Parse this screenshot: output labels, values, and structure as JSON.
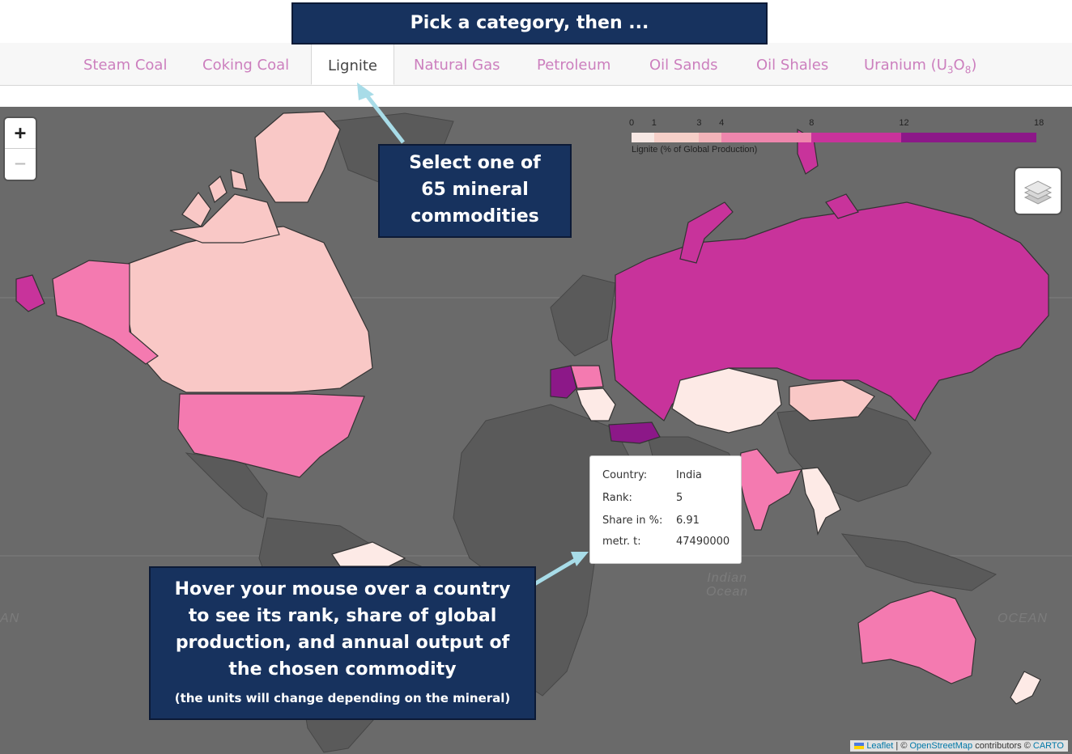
{
  "banner": {
    "text": "Pick a category, then ..."
  },
  "tabs": [
    {
      "label": "Steam Coal",
      "active": false
    },
    {
      "label": "Coking Coal",
      "active": false
    },
    {
      "label": "Lignite",
      "active": true
    },
    {
      "label": "Natural Gas",
      "active": false
    },
    {
      "label": "Petroleum",
      "active": false
    },
    {
      "label": "Oil Sands",
      "active": false
    },
    {
      "label": "Oil Shales",
      "active": false
    },
    {
      "label_main": "Uranium (U",
      "label_sub1": "3",
      "label_mid": "O",
      "label_sub2": "8",
      "label_end": ")",
      "active": false
    }
  ],
  "callouts": {
    "select_lines": [
      "Select one of",
      "65 mineral",
      "commodities"
    ],
    "hover_lines": [
      "Hover your mouse over a country",
      "to see its rank, share of global",
      "production, and annual output of",
      "the chosen commodity"
    ],
    "hover_note": "(the units will change depending on the mineral)"
  },
  "map": {
    "zoom_in_label": "+",
    "zoom_out_label": "−",
    "layers_icon": "layers-icon",
    "ocean_labels": {
      "indian": [
        "Indian",
        "Ocean"
      ],
      "right": "OCEAN",
      "left": "AN"
    },
    "legend": {
      "title": "Lignite (% of Global Production)",
      "ticks": [
        "0",
        "1",
        "3",
        "4",
        "8",
        "12",
        "18"
      ],
      "tick_values": [
        0,
        1,
        3,
        4,
        8,
        12,
        18
      ],
      "range": [
        0,
        18
      ],
      "bins": [
        {
          "from": 0,
          "to": 1,
          "color": "#f7e8e4"
        },
        {
          "from": 1,
          "to": 3,
          "color": "#f6cfc8"
        },
        {
          "from": 3,
          "to": 4,
          "color": "#f3b3b9"
        },
        {
          "from": 4,
          "to": 8,
          "color": "#ee86ad"
        },
        {
          "from": 8,
          "to": 12,
          "color": "#c8339b"
        },
        {
          "from": 12,
          "to": 18,
          "color": "#8c1888"
        }
      ]
    },
    "tooltip": {
      "rows": [
        {
          "key": "Country:",
          "value": "India"
        },
        {
          "key": "Rank:",
          "value": "5"
        },
        {
          "key": "Share in %:",
          "value": "6.91"
        },
        {
          "key": "metr. t:",
          "value": "47490000"
        }
      ]
    },
    "attribution": {
      "leaflet": "Leaflet",
      "sep": " | © ",
      "osm": "OpenStreetMap",
      "contrib": " contributors © ",
      "carto": "CARTO"
    }
  },
  "colors": {
    "tab_inactive": "#cc7fbe",
    "tab_active": "#444444",
    "callout_bg": "#17325e",
    "arrow": "#a8dce8",
    "map_bg": "#6a6a6a",
    "share_lightest": "#fdeae6",
    "share_light": "#f9c8c6",
    "share_mid": "#f47ab0",
    "share_high": "#c8339b",
    "share_top": "#8c1888"
  }
}
